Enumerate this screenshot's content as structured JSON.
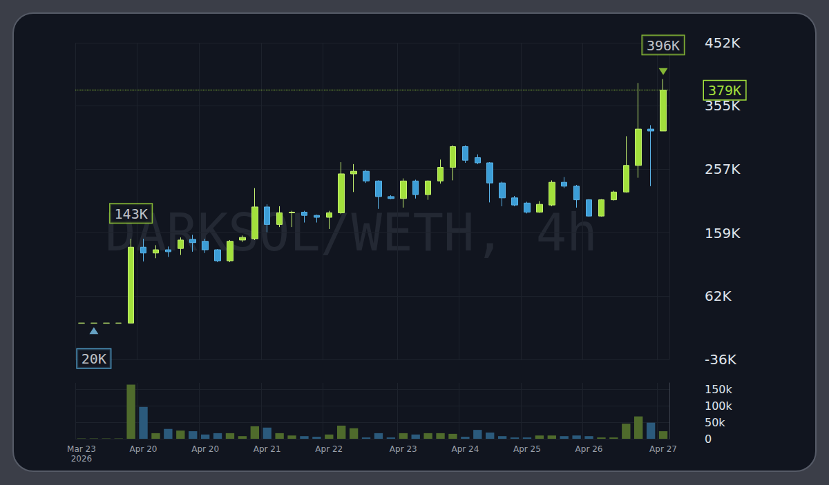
{
  "chart_data": [
    {
      "type": "candlestick",
      "watermark": "DARKSOL/WETH, 4h",
      "categories": [
        "Mar 23\n2026",
        null,
        null,
        null,
        null,
        "Apr 20",
        null,
        null,
        null,
        null,
        "Apr 20",
        null,
        null,
        null,
        null,
        "Apr 21",
        null,
        null,
        null,
        null,
        "Apr 22",
        null,
        null,
        null,
        null,
        null,
        "Apr 23",
        null,
        null,
        null,
        null,
        "Apr 24",
        null,
        null,
        null,
        null,
        "Apr 25",
        null,
        null,
        null,
        null,
        "Apr 26",
        null,
        null,
        null,
        null,
        null,
        "Apr 27"
      ],
      "open": [
        20,
        20,
        20,
        20,
        20,
        137,
        128,
        133,
        135,
        149,
        146,
        133,
        116,
        148,
        150,
        199,
        172,
        190,
        191,
        186,
        183,
        190,
        250,
        254,
        239,
        215,
        212,
        239,
        218,
        239,
        260,
        292,
        275,
        267,
        236,
        213,
        205,
        191,
        202,
        237,
        231,
        210,
        185,
        210,
        222,
        263,
        319,
        316
      ],
      "close": [
        20,
        20,
        20,
        20,
        137,
        128,
        133,
        130,
        148,
        144,
        133,
        116,
        146,
        152,
        199,
        172,
        190,
        191,
        186,
        183,
        190,
        250,
        254,
        239,
        215,
        212,
        239,
        218,
        239,
        260,
        292,
        271,
        267,
        236,
        213,
        202,
        191,
        203,
        237,
        231,
        210,
        185,
        210,
        222,
        263,
        319,
        316,
        379
      ],
      "low": [
        20,
        20,
        20,
        20,
        20,
        115,
        120,
        122,
        125,
        130,
        128,
        114,
        114,
        145,
        148,
        160,
        168,
        168,
        175,
        175,
        165,
        188,
        222,
        236,
        196,
        211,
        198,
        212,
        210,
        235,
        240,
        267,
        265,
        206,
        200,
        200,
        189,
        190,
        200,
        228,
        198,
        184,
        184,
        209,
        221,
        244,
        231,
        316
      ],
      "high": [
        20,
        20,
        20,
        20,
        150,
        150,
        140,
        138,
        152,
        156,
        150,
        134,
        148,
        155,
        228,
        203,
        200,
        193,
        193,
        187,
        193,
        268,
        265,
        256,
        240,
        217,
        243,
        241,
        240,
        272,
        294,
        294,
        280,
        268,
        238,
        216,
        207,
        208,
        240,
        245,
        233,
        211,
        211,
        224,
        308,
        390,
        325,
        396
      ],
      "ylim": [
        -36,
        452
      ],
      "yticks": [
        {
          "value": -36,
          "label": "-36K"
        },
        {
          "value": 62,
          "label": "62K"
        },
        {
          "value": 159,
          "label": "159K"
        },
        {
          "value": 257,
          "label": "257K"
        },
        {
          "value": 355,
          "label": "355K"
        },
        {
          "value": 452,
          "label": "452K"
        }
      ],
      "grid": true,
      "high_label": {
        "text": "396K",
        "index": 47,
        "value": 396
      },
      "low_label": {
        "text": "20K",
        "index": 1,
        "value": 20
      },
      "event_label": {
        "text": "143K",
        "index": 4,
        "value": 143
      },
      "price_line": {
        "text": "379K",
        "value": 379
      }
    },
    {
      "type": "bar",
      "categories": [
        "Mar 23\n2026",
        null,
        null,
        null,
        null,
        "Apr 20",
        null,
        null,
        null,
        null,
        "Apr 20",
        null,
        null,
        null,
        null,
        "Apr 21",
        null,
        null,
        null,
        null,
        "Apr 22",
        null,
        null,
        null,
        null,
        null,
        "Apr 23",
        null,
        null,
        null,
        null,
        "Apr 24",
        null,
        null,
        null,
        null,
        "Apr 25",
        null,
        null,
        null,
        null,
        "Apr 26",
        null,
        null,
        null,
        null,
        null,
        "Apr 27"
      ],
      "values": [
        1,
        1,
        1,
        1,
        165,
        97,
        17,
        30,
        25,
        23,
        13,
        17,
        17,
        8,
        38,
        34,
        17,
        10,
        8,
        6,
        13,
        40,
        32,
        4,
        17,
        4,
        17,
        13,
        17,
        17,
        15,
        6,
        27,
        19,
        8,
        4,
        4,
        10,
        10,
        8,
        10,
        8,
        4,
        4,
        46,
        68,
        49,
        23
      ],
      "ylim": [
        0,
        170
      ],
      "yticks": [
        0,
        {
          "value": 50,
          "label": "50k"
        },
        {
          "value": 100,
          "label": "100k"
        },
        {
          "value": 150,
          "label": "150k"
        }
      ],
      "grid": true
    }
  ]
}
